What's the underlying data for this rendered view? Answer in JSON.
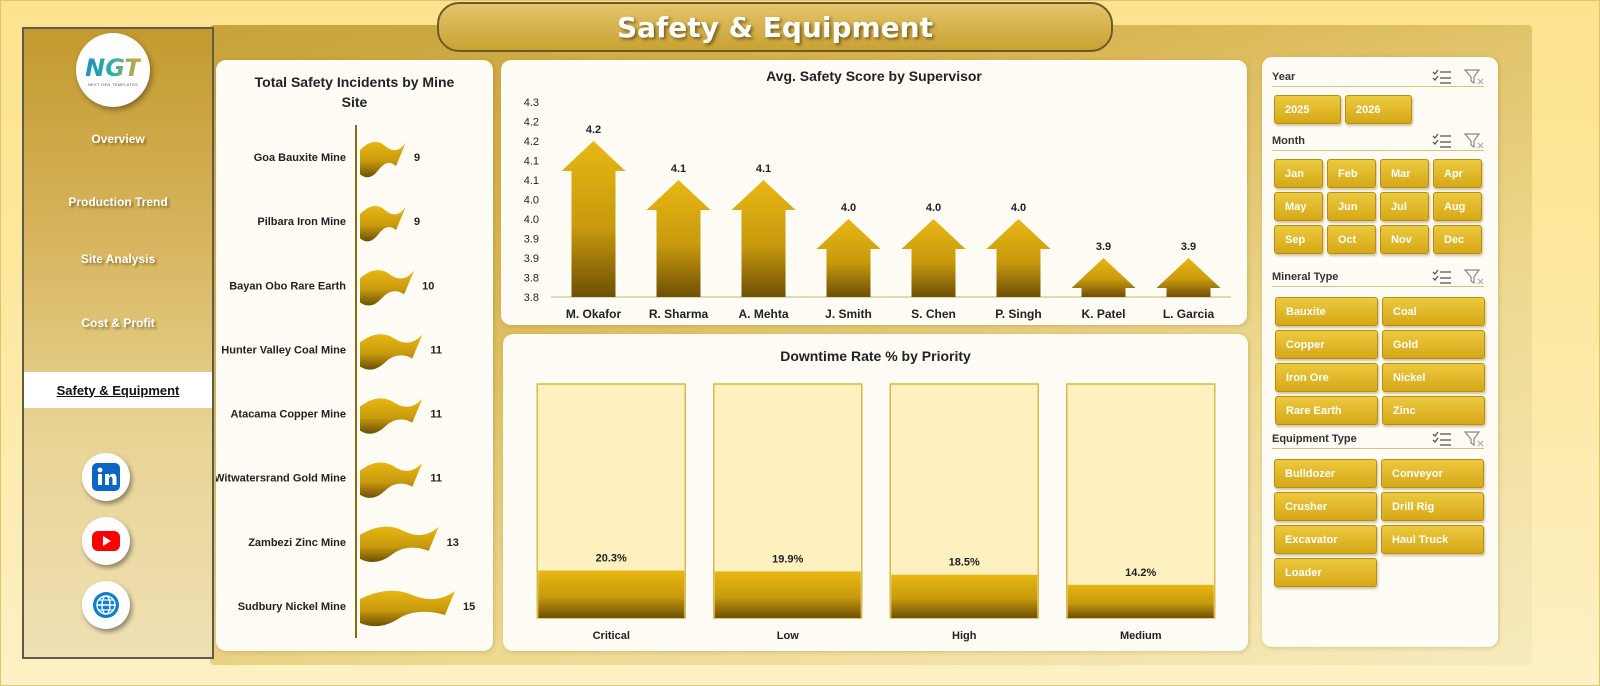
{
  "header": {
    "title": "Safety & Equipment"
  },
  "logo": {
    "text": "NGT",
    "sub": "NEXT GEN TEMPLATES"
  },
  "sidebar": {
    "items": [
      {
        "label": "Overview",
        "active": false
      },
      {
        "label": "Production Trend",
        "active": false
      },
      {
        "label": "Site Analysis",
        "active": false
      },
      {
        "label": "Cost & Profit",
        "active": false
      },
      {
        "label": "Safety & Equipment",
        "active": true
      }
    ],
    "social": [
      "linkedin-icon",
      "youtube-icon",
      "globe-icon"
    ]
  },
  "colors": {
    "gold": "#d4a51a",
    "gold_dark": "#7a5a05",
    "panel": "#fefcf4",
    "track": "#fff0c0"
  },
  "chart_data": [
    {
      "type": "bar",
      "orientation": "horizontal",
      "title": "Total Safety Incidents by Mine Site",
      "categories": [
        "Goa Bauxite Mine",
        "Pilbara Iron Mine",
        "Bayan Obo Rare Earth",
        "Hunter Valley Coal Mine",
        "Atacama Copper Mine",
        "Witwatersrand Gold Mine",
        "Zambezi Zinc Mine",
        "Sudbury Nickel Mine"
      ],
      "values": [
        9,
        9,
        10,
        11,
        11,
        11,
        13,
        15
      ]
    },
    {
      "type": "bar",
      "title": "Avg. Safety Score by Supervisor",
      "categories": [
        "M. Okafor",
        "R. Sharma",
        "A. Mehta",
        "J. Smith",
        "S. Chen",
        "P. Singh",
        "K. Patel",
        "L. Garcia"
      ],
      "values": [
        4.2,
        4.1,
        4.1,
        4.0,
        4.0,
        4.0,
        3.9,
        3.9
      ],
      "ylim": [
        3.8,
        4.3
      ],
      "yticks": [
        "3.8",
        "3.8",
        "3.9",
        "3.9",
        "4.0",
        "4.0",
        "4.1",
        "4.1",
        "4.2",
        "4.2",
        "4.3"
      ]
    },
    {
      "type": "bar",
      "title": "Downtime Rate % by Priority",
      "categories": [
        "Critical",
        "Low",
        "High",
        "Medium"
      ],
      "values": [
        20.3,
        19.9,
        18.5,
        14.2
      ],
      "labels": [
        "20.3%",
        "19.9%",
        "18.5%",
        "14.2%"
      ],
      "ylim": [
        0,
        100
      ]
    }
  ],
  "slicers": {
    "year": {
      "label": "Year",
      "items": [
        "2025",
        "2026"
      ]
    },
    "month": {
      "label": "Month",
      "items": [
        "Jan",
        "Feb",
        "Mar",
        "Apr",
        "May",
        "Jun",
        "Jul",
        "Aug",
        "Sep",
        "Oct",
        "Nov",
        "Dec"
      ]
    },
    "mineral": {
      "label": "Mineral Type",
      "items": [
        "Bauxite",
        "Coal",
        "Copper",
        "Gold",
        "Iron Ore",
        "Nickel",
        "Rare Earth",
        "Zinc"
      ]
    },
    "equipment": {
      "label": "Equipment Type",
      "items": [
        "Bulldozer",
        "Conveyor",
        "Crusher",
        "Drill Rig",
        "Excavator",
        "Haul Truck",
        "Loader"
      ]
    }
  }
}
